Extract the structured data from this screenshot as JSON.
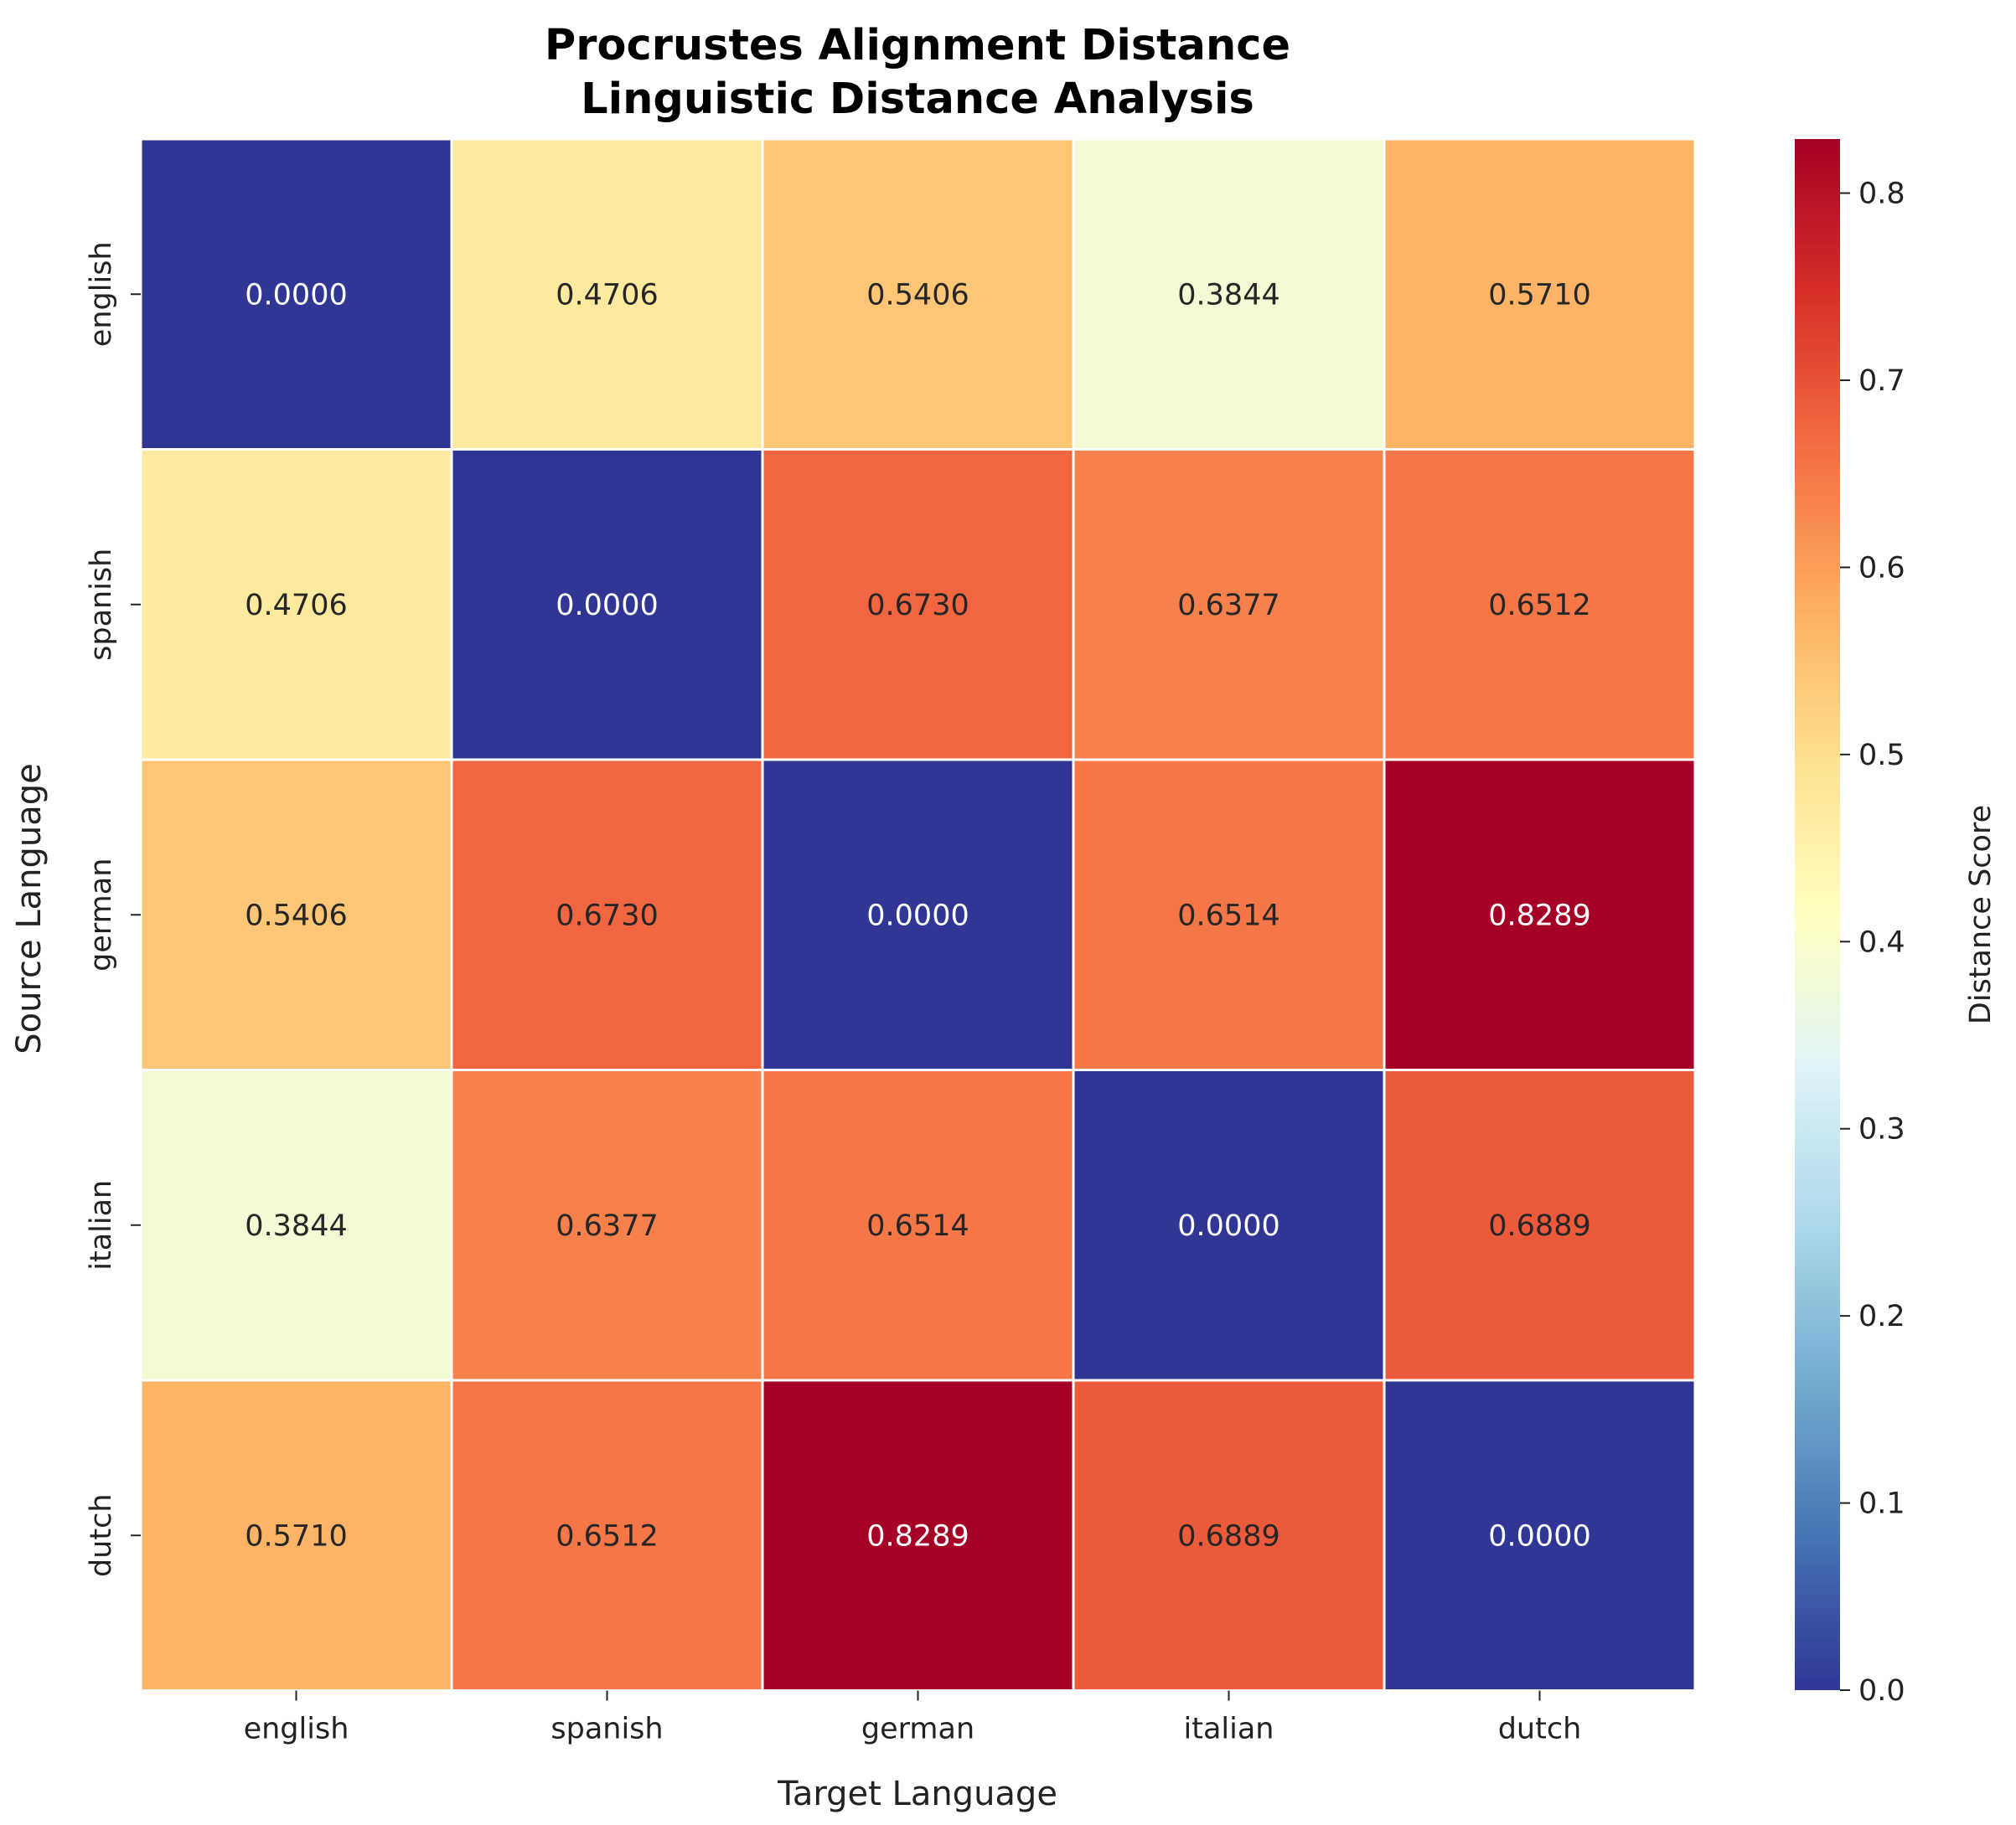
{
  "chart_data": {
    "type": "heatmap",
    "title": [
      "Procrustes Alignment Distance",
      "Linguistic Distance Analysis"
    ],
    "xlabel": "Target Language",
    "ylabel": "Source Language",
    "x_categories": [
      "english",
      "spanish",
      "german",
      "italian",
      "dutch"
    ],
    "y_categories": [
      "english",
      "spanish",
      "german",
      "italian",
      "dutch"
    ],
    "values": [
      [
        0.0,
        0.4706,
        0.5406,
        0.3844,
        0.571
      ],
      [
        0.4706,
        0.0,
        0.673,
        0.6377,
        0.6512
      ],
      [
        0.5406,
        0.673,
        0.0,
        0.6514,
        0.8289
      ],
      [
        0.3844,
        0.6377,
        0.6514,
        0.0,
        0.6889
      ],
      [
        0.571,
        0.6512,
        0.8289,
        0.6889,
        0.0
      ]
    ],
    "value_format_decimals": 4,
    "colormap": "RdYlBu_r",
    "colorbar": {
      "label": "Distance Score",
      "range": [
        0.0,
        0.8289
      ],
      "ticks": [
        0.0,
        0.1,
        0.2,
        0.3,
        0.4,
        0.5,
        0.6,
        0.7,
        0.8
      ],
      "tick_labels": [
        "0.0",
        "0.1",
        "0.2",
        "0.3",
        "0.4",
        "0.5",
        "0.6",
        "0.7",
        "0.8"
      ]
    }
  },
  "colors": {
    "cmap_stops": [
      "#313695",
      "#4575b4",
      "#74add1",
      "#abd9e9",
      "#e0f3f8",
      "#ffffbf",
      "#fee090",
      "#fdae61",
      "#f46d43",
      "#d73027",
      "#a50026"
    ],
    "grid_line": "#ffffff",
    "text_dark": "#262626",
    "text_light": "#ffffff"
  }
}
